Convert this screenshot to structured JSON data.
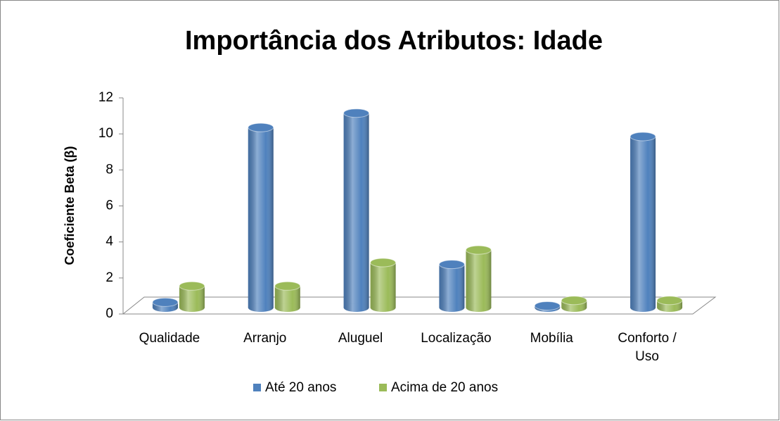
{
  "chart_data": {
    "type": "bar3d",
    "title": "Importância dos Atributos: Idade",
    "y_label": "Coeficiente Beta (β)",
    "categories": [
      "Qualidade",
      "Arranjo",
      "Aluguel",
      "Localização",
      "Mobília",
      "Conforto / Uso"
    ],
    "series": [
      {
        "name": "Até 20 anos",
        "color": "#4f81bd",
        "values": [
          0.3,
          10,
          10.8,
          2.4,
          0.1,
          9.5
        ]
      },
      {
        "name": "Acima de 20 anos",
        "color": "#9bbb59",
        "values": [
          1.2,
          1.2,
          2.5,
          3.2,
          0.4,
          0.4
        ]
      }
    ],
    "ylim": [
      0,
      12
    ],
    "yticks": [
      0,
      2,
      4,
      6,
      8,
      10,
      12
    ],
    "legend": "bottom"
  }
}
